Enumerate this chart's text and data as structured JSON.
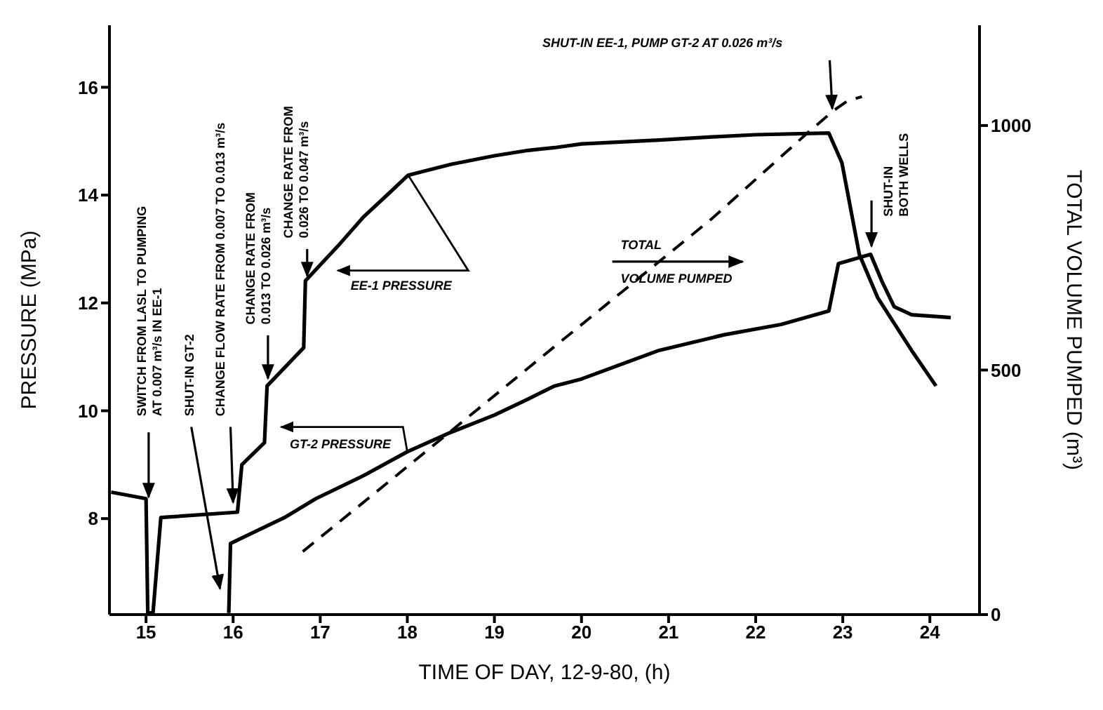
{
  "chart_data": {
    "type": "line",
    "xlabel": "TIME OF DAY, 12-9-80, (h)",
    "ylabel": "PRESSURE (MPa)",
    "y2label": "TOTAL VOLUME PUMPED (m³)",
    "xlim": [
      14.58,
      24.57
    ],
    "xticks": [
      15,
      16,
      17,
      18,
      19,
      20,
      21,
      22,
      23,
      24
    ],
    "ylim": [
      6.22,
      17.15
    ],
    "yticks": [
      8,
      10,
      12,
      14,
      16
    ],
    "y2lim": [
      0,
      1205
    ],
    "y2ticks": [
      0,
      500,
      1000
    ],
    "marker": "none",
    "series": [
      {
        "color": "#000000",
        "line_style": "solid",
        "x": [
          14.6,
          15.0,
          15.02,
          15.08,
          15.17,
          16.05,
          16.1,
          16.36,
          16.39,
          16.81,
          16.83,
          17.2,
          17.5,
          17.8,
          18.01,
          18.5,
          19.0,
          19.39,
          19.69,
          20.0,
          20.89,
          21.5,
          22.0,
          22.84,
          22.99,
          23.19,
          23.4,
          23.79,
          24.07
        ],
        "values": [
          8.49,
          8.37,
          6.25,
          6.25,
          8.02,
          8.12,
          9.0,
          9.41,
          10.46,
          11.17,
          12.41,
          13.05,
          13.6,
          14.05,
          14.37,
          14.57,
          14.73,
          14.83,
          14.88,
          14.95,
          15.02,
          15.08,
          15.12,
          15.15,
          14.6,
          12.9,
          12.1,
          11.12,
          10.46
        ]
      },
      {
        "color": "#000000",
        "line_style": "solid",
        "x": [
          15.95,
          15.97,
          16.59,
          16.95,
          17.5,
          18.0,
          18.5,
          19.0,
          19.39,
          19.69,
          20.0,
          20.89,
          21.64,
          22.29,
          22.84,
          22.95,
          23.32,
          23.45,
          23.59,
          23.79,
          24.24
        ],
        "values": [
          6.25,
          7.54,
          8.02,
          8.37,
          8.8,
          9.24,
          9.6,
          9.92,
          10.22,
          10.46,
          10.59,
          11.12,
          11.41,
          11.6,
          11.85,
          12.73,
          12.9,
          12.4,
          11.93,
          11.78,
          11.73
        ]
      },
      {
        "color": "#000000",
        "line_style": "dashed",
        "axis": "y2",
        "x": [
          16.8,
          17.5,
          18.5,
          19.69,
          20.5,
          21.5,
          22.59,
          22.89,
          23.05,
          23.22
        ],
        "values": [
          129,
          230,
          375,
          548,
          665,
          810,
          984,
          1030,
          1050,
          1059
        ]
      }
    ],
    "annotations": [
      {
        "text": "SWITCH FROM LASL TO PUMPING AT 0.007 m³/s IN EE-1",
        "x": 15.03,
        "y": 8.4
      },
      "SHUT-IN GT-2",
      {
        "text": "CHANGE FLOW RATE FROM 0.007 TO 0.013 m³/s",
        "x": 16.0,
        "y": 8.3
      },
      {
        "text": "CHANGE RATE FROM 0.013 TO 0.026 m³/s",
        "x": 16.4,
        "y": 10.6
      },
      {
        "text": "CHANGE RATE FROM 0.026 TO 0.047 m³/s",
        "x": 16.85,
        "y": 12.5
      },
      {
        "text": "EE-1 PRESSURE",
        "x": 18.01,
        "y": 14.37
      },
      {
        "text": "GT-2 PRESSURE",
        "x": 18.0,
        "y": 9.24
      },
      "TOTAL VOLUME PUMPED",
      "SHUT-IN EE-1, PUMP GT-2 AT 0.026 m³/s",
      "SHUT-IN BOTH WELLS"
    ]
  }
}
